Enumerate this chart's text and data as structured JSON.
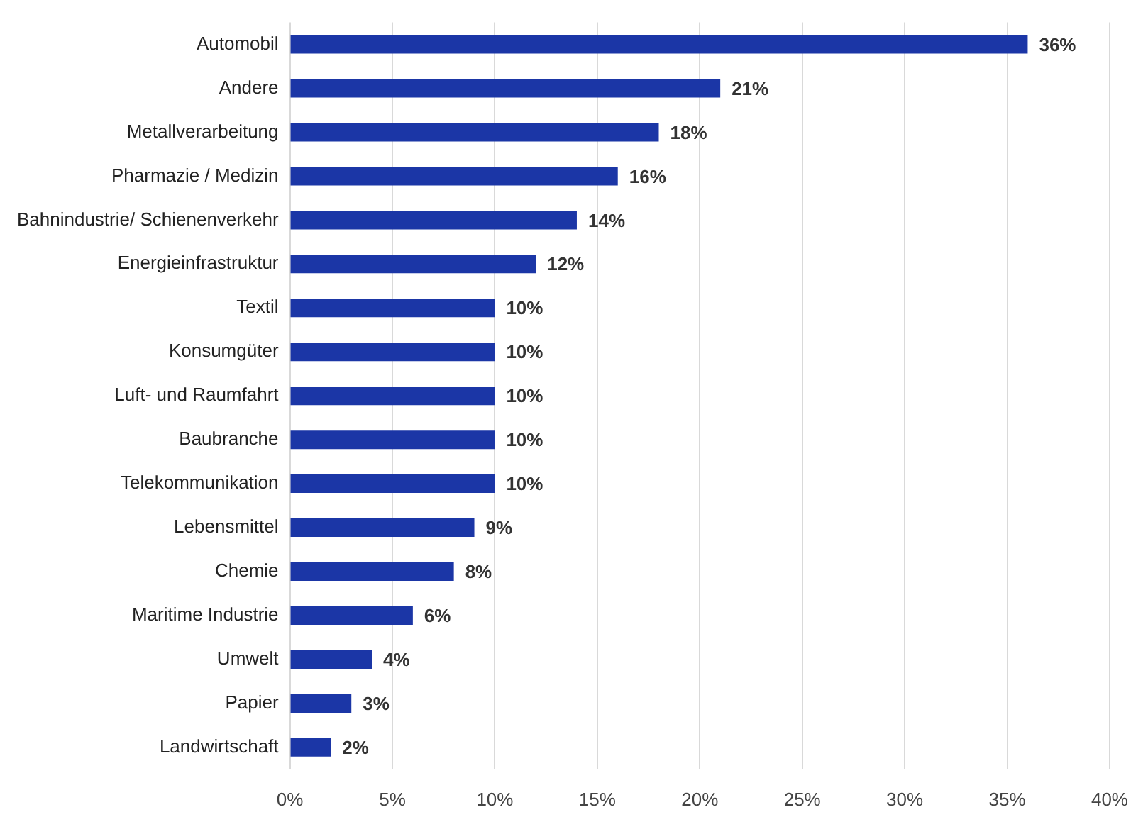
{
  "chart_data": {
    "type": "bar",
    "orientation": "horizontal",
    "categories": [
      "Automobil",
      "Andere",
      "Metallverarbeitung",
      "Pharmazie / Medizin",
      "Bahnindustrie/ Schienenverkehr",
      "Energieinfrastruktur",
      "Textil",
      "Konsumgüter",
      "Luft- und Raumfahrt",
      "Baubranche",
      "Telekommunikation",
      "Lebensmittel",
      "Chemie",
      "Maritime Industrie",
      "Umwelt",
      "Papier",
      "Landwirtschaft"
    ],
    "values": [
      36,
      21,
      18,
      16,
      14,
      12,
      10,
      10,
      10,
      10,
      10,
      9,
      8,
      6,
      4,
      3,
      2
    ],
    "value_labels": [
      "36%",
      "21%",
      "18%",
      "16%",
      "14%",
      "12%",
      "10%",
      "10%",
      "10%",
      "10%",
      "10%",
      "9%",
      "8%",
      "6%",
      "4%",
      "3%",
      "2%"
    ],
    "color": "#1b36a6",
    "xlim": [
      0,
      40
    ],
    "xticks": [
      {
        "value": 0,
        "label": "0%"
      },
      {
        "value": 5,
        "label": "5%"
      },
      {
        "value": 10,
        "label": "10%"
      },
      {
        "value": 15,
        "label": "15%"
      },
      {
        "value": 20,
        "label": "20%"
      },
      {
        "value": 25,
        "label": "25%"
      },
      {
        "value": 30,
        "label": "30%"
      },
      {
        "value": 35,
        "label": "35%"
      },
      {
        "value": 40,
        "label": "40%"
      }
    ],
    "grid": "x",
    "legend": false
  }
}
